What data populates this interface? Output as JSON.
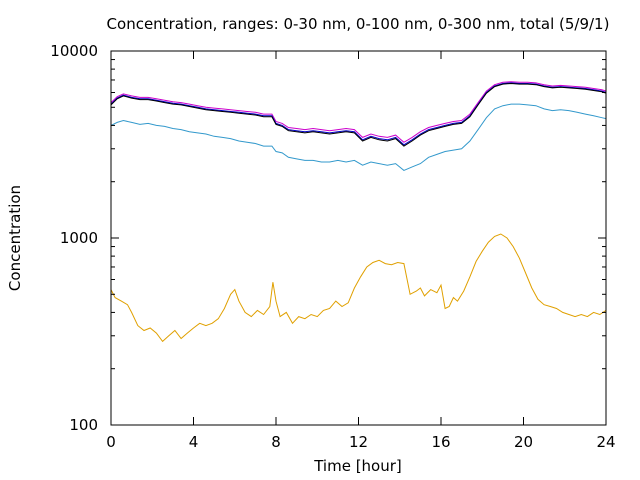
{
  "chart_data": {
    "type": "line",
    "title": "Concentration, ranges: 0-30 nm, 0-100 nm, 0-300 nm, total (5/9/1)",
    "xlabel": "Time [hour]",
    "ylabel": "Concentration",
    "xlim": [
      0,
      24
    ],
    "ylim": [
      100,
      10000
    ],
    "yscale": "log",
    "grid": false,
    "x_ticks": [
      "0",
      "4",
      "8",
      "12",
      "16",
      "20",
      "24"
    ],
    "y_ticks": [
      "100",
      "1000",
      "10000"
    ],
    "series": [
      {
        "color": "#e0a000",
        "x": [
          0,
          0.2,
          0.5,
          0.8,
          1.0,
          1.3,
          1.6,
          1.9,
          2.2,
          2.5,
          2.8,
          3.1,
          3.4,
          3.7,
          4.0,
          4.3,
          4.6,
          4.9,
          5.2,
          5.5,
          5.8,
          6.0,
          6.2,
          6.5,
          6.8,
          7.1,
          7.4,
          7.7,
          7.85,
          8.0,
          8.2,
          8.5,
          8.8,
          9.1,
          9.4,
          9.7,
          10.0,
          10.3,
          10.6,
          10.9,
          11.2,
          11.5,
          11.8,
          12.1,
          12.4,
          12.7,
          13.0,
          13.3,
          13.6,
          13.9,
          14.2,
          14.5,
          14.8,
          15.0,
          15.2,
          15.5,
          15.8,
          16.0,
          16.2,
          16.4,
          16.6,
          16.8,
          17.1,
          17.4,
          17.7,
          18.0,
          18.3,
          18.6,
          18.9,
          19.2,
          19.5,
          19.8,
          20.1,
          20.4,
          20.7,
          21.0,
          21.3,
          21.6,
          21.9,
          22.2,
          22.5,
          22.8,
          23.1,
          23.4,
          23.7,
          24.0
        ],
        "values": [
          530,
          480,
          460,
          440,
          400,
          340,
          320,
          330,
          310,
          280,
          300,
          320,
          290,
          310,
          330,
          350,
          340,
          350,
          370,
          420,
          500,
          530,
          460,
          400,
          380,
          410,
          390,
          430,
          580,
          460,
          380,
          400,
          350,
          380,
          370,
          390,
          380,
          410,
          420,
          460,
          430,
          450,
          540,
          620,
          700,
          740,
          760,
          730,
          720,
          740,
          730,
          500,
          520,
          540,
          490,
          530,
          510,
          560,
          420,
          430,
          480,
          460,
          520,
          620,
          750,
          850,
          950,
          1020,
          1050,
          1000,
          900,
          780,
          650,
          540,
          470,
          440,
          430,
          420,
          400,
          390,
          380,
          390,
          380,
          400,
          390,
          410
        ]
      },
      {
        "color": "#3399cc",
        "x": [
          0,
          0.3,
          0.6,
          1.0,
          1.4,
          1.8,
          2.2,
          2.6,
          3.0,
          3.4,
          3.8,
          4.2,
          4.6,
          5.0,
          5.4,
          5.8,
          6.2,
          6.6,
          7.0,
          7.4,
          7.8,
          8.0,
          8.3,
          8.6,
          9.0,
          9.4,
          9.8,
          10.2,
          10.6,
          11.0,
          11.4,
          11.8,
          12.2,
          12.6,
          13.0,
          13.4,
          13.8,
          14.2,
          14.6,
          15.0,
          15.4,
          15.8,
          16.2,
          16.6,
          17.0,
          17.4,
          17.8,
          18.2,
          18.6,
          19.0,
          19.4,
          19.8,
          20.2,
          20.6,
          21.0,
          21.4,
          21.8,
          22.2,
          22.6,
          23.0,
          23.4,
          23.8,
          24.0
        ],
        "values": [
          4000,
          4150,
          4250,
          4150,
          4050,
          4100,
          4000,
          3950,
          3850,
          3800,
          3700,
          3650,
          3600,
          3500,
          3450,
          3400,
          3300,
          3250,
          3200,
          3100,
          3100,
          2900,
          2850,
          2700,
          2650,
          2600,
          2600,
          2550,
          2550,
          2600,
          2550,
          2600,
          2450,
          2550,
          2500,
          2450,
          2500,
          2300,
          2400,
          2500,
          2700,
          2800,
          2900,
          2950,
          3000,
          3300,
          3800,
          4400,
          4900,
          5100,
          5200,
          5200,
          5150,
          5100,
          4900,
          4800,
          4850,
          4800,
          4700,
          4600,
          4500,
          4400,
          4350
        ]
      },
      {
        "color": "#cc00cc",
        "x": [
          0,
          0.3,
          0.6,
          1.0,
          1.4,
          1.8,
          2.2,
          2.6,
          3.0,
          3.4,
          3.8,
          4.2,
          4.6,
          5.0,
          5.4,
          5.8,
          6.2,
          6.6,
          7.0,
          7.4,
          7.8,
          8.0,
          8.3,
          8.6,
          9.0,
          9.4,
          9.8,
          10.2,
          10.6,
          11.0,
          11.4,
          11.8,
          12.2,
          12.6,
          13.0,
          13.4,
          13.8,
          14.2,
          14.6,
          15.0,
          15.4,
          15.8,
          16.2,
          16.6,
          17.0,
          17.4,
          17.8,
          18.2,
          18.6,
          19.0,
          19.4,
          19.8,
          20.2,
          20.6,
          21.0,
          21.4,
          21.8,
          22.2,
          22.6,
          23.0,
          23.4,
          23.8,
          24.0
        ],
        "values": [
          5300,
          5700,
          5900,
          5750,
          5650,
          5650,
          5550,
          5450,
          5350,
          5300,
          5200,
          5100,
          5000,
          4950,
          4900,
          4850,
          4800,
          4750,
          4700,
          4600,
          4600,
          4200,
          4100,
          3900,
          3850,
          3800,
          3850,
          3800,
          3750,
          3800,
          3850,
          3800,
          3450,
          3600,
          3500,
          3450,
          3550,
          3250,
          3450,
          3700,
          3900,
          4000,
          4100,
          4200,
          4250,
          4600,
          5300,
          6100,
          6600,
          6800,
          6850,
          6800,
          6800,
          6750,
          6600,
          6500,
          6550,
          6500,
          6450,
          6400,
          6300,
          6200,
          6100
        ]
      },
      {
        "color": "#0000cc",
        "x": [
          0,
          0.3,
          0.6,
          1.0,
          1.4,
          1.8,
          2.2,
          2.6,
          3.0,
          3.4,
          3.8,
          4.2,
          4.6,
          5.0,
          5.4,
          5.8,
          6.2,
          6.6,
          7.0,
          7.4,
          7.8,
          8.0,
          8.3,
          8.6,
          9.0,
          9.4,
          9.8,
          10.2,
          10.6,
          11.0,
          11.4,
          11.8,
          12.2,
          12.6,
          13.0,
          13.4,
          13.8,
          14.2,
          14.6,
          15.0,
          15.4,
          15.8,
          16.2,
          16.6,
          17.0,
          17.4,
          17.8,
          18.2,
          18.6,
          19.0,
          19.4,
          19.8,
          20.2,
          20.6,
          21.0,
          21.4,
          21.8,
          22.2,
          22.6,
          23.0,
          23.4,
          23.8,
          24.0
        ],
        "values": [
          5200,
          5600,
          5800,
          5650,
          5550,
          5550,
          5450,
          5350,
          5250,
          5200,
          5100,
          5000,
          4900,
          4850,
          4800,
          4750,
          4700,
          4650,
          4600,
          4500,
          4500,
          4100,
          4000,
          3800,
          3750,
          3700,
          3750,
          3700,
          3650,
          3700,
          3750,
          3700,
          3350,
          3500,
          3400,
          3350,
          3450,
          3150,
          3350,
          3600,
          3800,
          3900,
          4000,
          4100,
          4150,
          4500,
          5200,
          6000,
          6500,
          6700,
          6750,
          6700,
          6700,
          6650,
          6500,
          6400,
          6450,
          6400,
          6350,
          6300,
          6200,
          6100,
          6000
        ]
      },
      {
        "color": "#000000",
        "x": [
          0,
          0.3,
          0.6,
          1.0,
          1.4,
          1.8,
          2.2,
          2.6,
          3.0,
          3.4,
          3.8,
          4.2,
          4.6,
          5.0,
          5.4,
          5.8,
          6.2,
          6.6,
          7.0,
          7.4,
          7.8,
          8.0,
          8.3,
          8.6,
          9.0,
          9.4,
          9.8,
          10.2,
          10.6,
          11.0,
          11.4,
          11.8,
          12.2,
          12.6,
          13.0,
          13.4,
          13.8,
          14.2,
          14.6,
          15.0,
          15.4,
          15.8,
          16.2,
          16.6,
          17.0,
          17.4,
          17.8,
          18.2,
          18.6,
          19.0,
          19.4,
          19.8,
          20.2,
          20.6,
          21.0,
          21.4,
          21.8,
          22.2,
          22.6,
          23.0,
          23.4,
          23.8,
          24.0
        ],
        "values": [
          5150,
          5550,
          5750,
          5600,
          5500,
          5500,
          5400,
          5300,
          5200,
          5150,
          5050,
          4950,
          4850,
          4800,
          4750,
          4700,
          4650,
          4600,
          4550,
          4450,
          4450,
          4050,
          3950,
          3750,
          3700,
          3650,
          3700,
          3650,
          3600,
          3650,
          3700,
          3650,
          3300,
          3450,
          3350,
          3300,
          3400,
          3100,
          3300,
          3550,
          3750,
          3850,
          3950,
          4050,
          4100,
          4450,
          5150,
          5950,
          6450,
          6650,
          6700,
          6650,
          6650,
          6600,
          6450,
          6350,
          6400,
          6350,
          6300,
          6250,
          6150,
          6050,
          5950
        ]
      }
    ]
  }
}
